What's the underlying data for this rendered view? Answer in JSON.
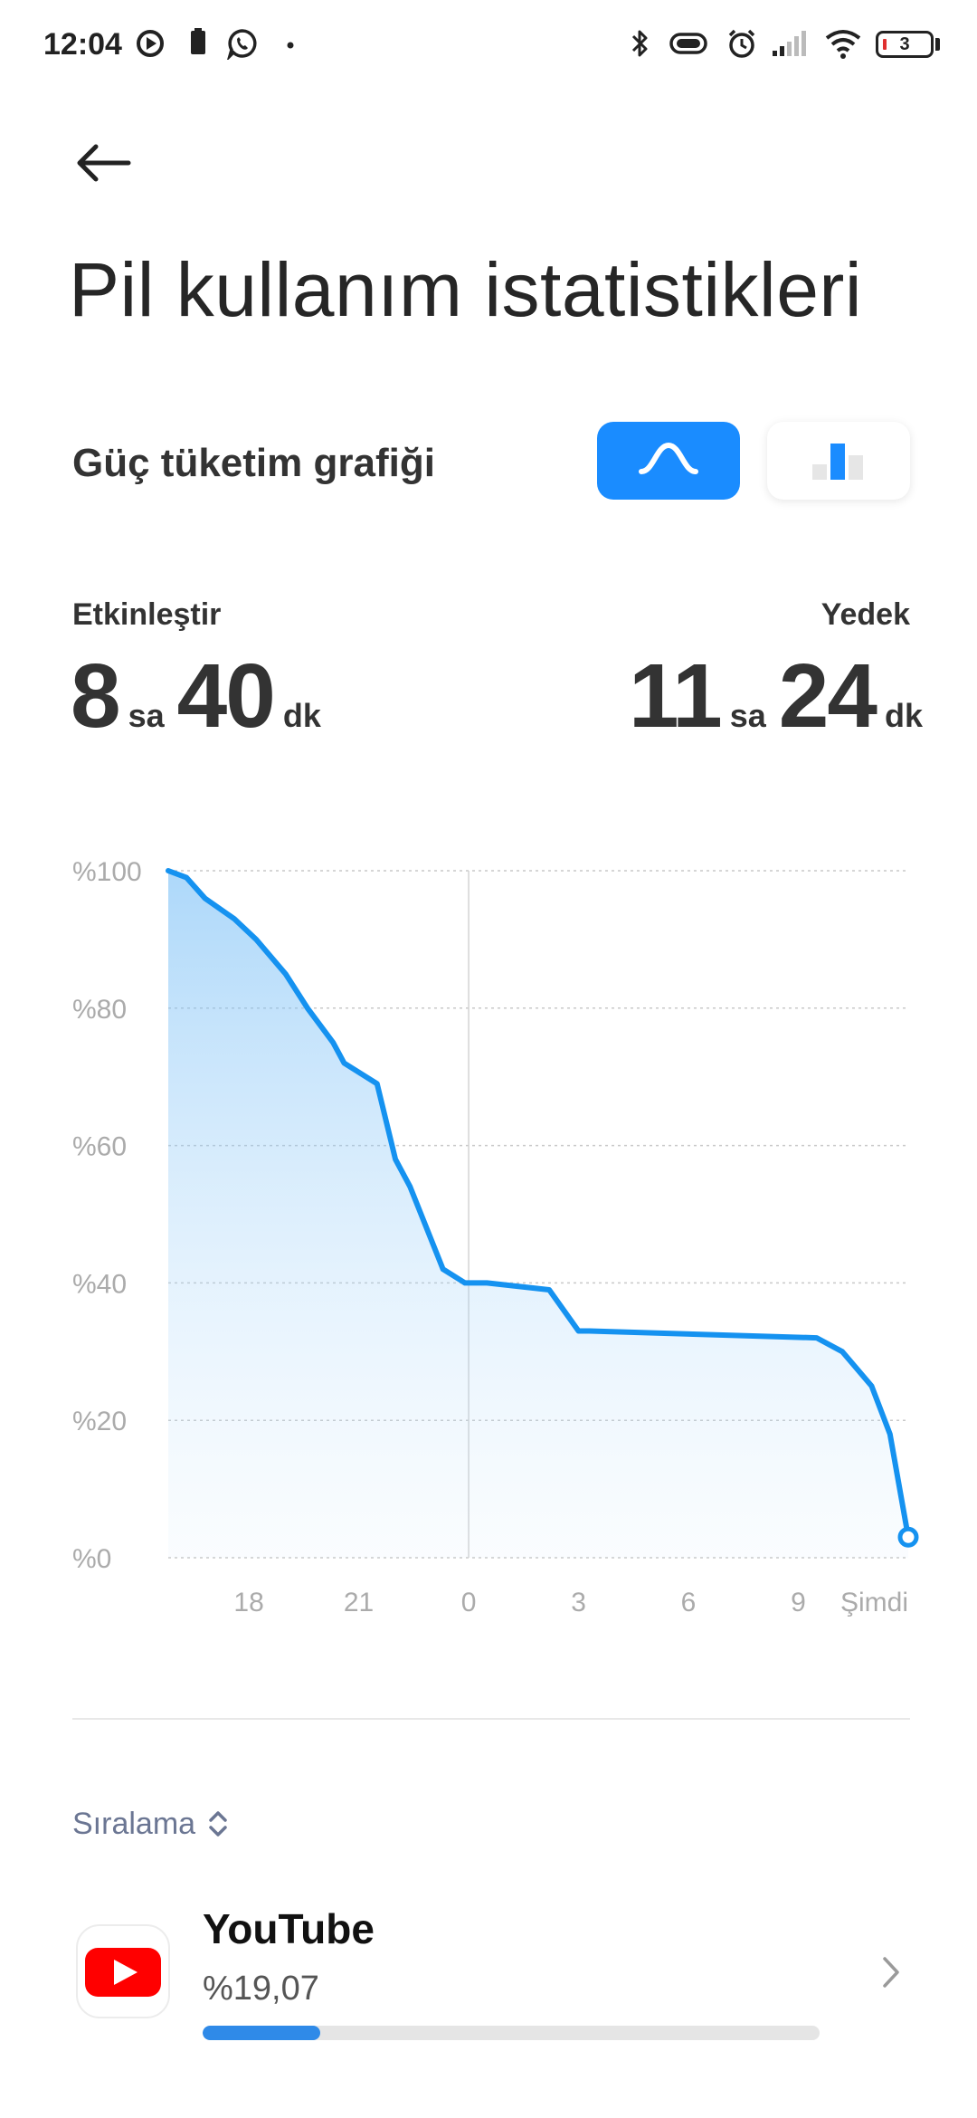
{
  "status_bar": {
    "time": "12:04",
    "battery_level": "3",
    "icons": [
      "play-circle-icon",
      "sim-card-icon",
      "whatsapp-icon",
      "dot-icon",
      "bluetooth-icon",
      "vibrate-icon",
      "alarm-icon",
      "signal-icon",
      "wifi-icon",
      "battery-icon"
    ]
  },
  "header": {
    "back_icon": "arrow-left-icon",
    "title": "Pil kullanım istatistikleri"
  },
  "graph_section": {
    "title": "Güç tüketim grafiği",
    "toggle_line_icon": "line-chart-icon",
    "toggle_bar_icon": "bar-chart-icon",
    "active_toggle": "line",
    "accent_color": "#1a8cff"
  },
  "stats": {
    "active": {
      "label": "Etkinleştir",
      "hours": "8",
      "hours_unit": "sa",
      "minutes": "40",
      "minutes_unit": "dk"
    },
    "standby": {
      "label": "Yedek",
      "hours": "11",
      "hours_unit": "sa",
      "minutes": "24",
      "minutes_unit": "dk"
    }
  },
  "chart_data": {
    "type": "area",
    "y_tick_labels": [
      "%100",
      "%80",
      "%60",
      "%40",
      "%20",
      "%0"
    ],
    "y_ticks": [
      100,
      80,
      60,
      40,
      20,
      0
    ],
    "ylim": [
      0,
      100
    ],
    "x_tick_labels": [
      "18",
      "21",
      "0",
      "3",
      "6",
      "9",
      "Şimdi"
    ],
    "x_ticks_hours": [
      18,
      21,
      24,
      27,
      30,
      33,
      36
    ],
    "xlim_hours": [
      15.8,
      36.0
    ],
    "grid": true,
    "midnight_marker_hour": 24,
    "series": [
      {
        "color": "#1592f0",
        "x": [
          15.8,
          16.3,
          16.8,
          17.6,
          18.2,
          19.0,
          19.6,
          20.3,
          20.6,
          21.5,
          22.0,
          22.4,
          23.3,
          23.9,
          24.5,
          26.2,
          27.0,
          27.3,
          33.5,
          34.2,
          35.0,
          35.5,
          36.0
        ],
        "y": [
          100,
          99,
          96,
          93,
          90,
          85,
          80,
          75,
          72,
          69,
          58,
          54,
          42,
          40,
          40,
          39,
          33,
          33,
          32,
          30,
          25,
          18,
          3
        ]
      }
    ]
  },
  "sort": {
    "label": "Sıralama",
    "icon": "sort-updown-icon"
  },
  "apps": [
    {
      "name": "YouTube",
      "percent": "%19,07",
      "usage_fraction": 0.1907,
      "icon": "youtube-icon",
      "brand_color": "#ff0000"
    }
  ]
}
